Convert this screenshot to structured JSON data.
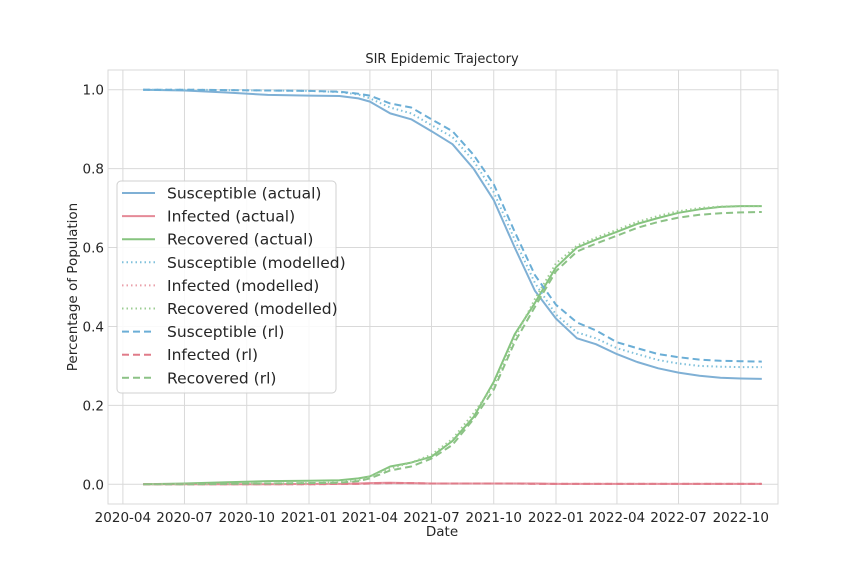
{
  "chart_data": {
    "type": "line",
    "title": "SIR Epidemic Trajectory",
    "xlabel": "Date",
    "ylabel": "Percentage of Population",
    "xlim": [
      "2020-03-10",
      "2022-11-25"
    ],
    "ylim": [
      -0.05,
      1.05
    ],
    "grid": true,
    "legend_placement": "center-left",
    "x_ticks": [
      "2020-04-01",
      "2020-07-01",
      "2020-10-01",
      "2021-01-01",
      "2021-04-01",
      "2021-07-01",
      "2021-10-01",
      "2022-01-01",
      "2022-04-01",
      "2022-07-01",
      "2022-10-01"
    ],
    "x_tick_labels": [
      "2020-04",
      "2020-07",
      "2020-10",
      "2021-01",
      "2021-04",
      "2021-07",
      "2021-10",
      "2022-01",
      "2022-04",
      "2022-07",
      "2022-10"
    ],
    "y_ticks": [
      0.0,
      0.2,
      0.4,
      0.6,
      0.8,
      1.0
    ],
    "y_tick_labels": [
      "0.0",
      "0.2",
      "0.4",
      "0.6",
      "0.8",
      "1.0"
    ],
    "x": [
      "2020-05-01",
      "2020-07-01",
      "2020-09-01",
      "2020-11-01",
      "2021-01-01",
      "2021-02-15",
      "2021-03-15",
      "2021-04-01",
      "2021-05-01",
      "2021-06-01",
      "2021-07-01",
      "2021-08-01",
      "2021-09-01",
      "2021-10-01",
      "2021-11-01",
      "2021-12-01",
      "2022-01-01",
      "2022-02-01",
      "2022-03-01",
      "2022-04-01",
      "2022-05-01",
      "2022-06-01",
      "2022-07-01",
      "2022-08-01",
      "2022-09-01",
      "2022-10-01",
      "2022-11-01"
    ],
    "series": [
      {
        "name": "Susceptible (actual)",
        "color": "#7fb0d5",
        "style": "solid",
        "values": [
          1.0,
          0.998,
          0.993,
          0.987,
          0.985,
          0.984,
          0.978,
          0.97,
          0.94,
          0.925,
          0.895,
          0.862,
          0.8,
          0.72,
          0.6,
          0.49,
          0.42,
          0.37,
          0.355,
          0.33,
          0.31,
          0.294,
          0.283,
          0.275,
          0.27,
          0.268,
          0.267
        ]
      },
      {
        "name": "Infected (actual)",
        "color": "#e58a97",
        "style": "solid",
        "values": [
          0.0,
          0.0,
          0.0,
          0.0,
          0.001,
          0.001,
          0.002,
          0.003,
          0.004,
          0.003,
          0.002,
          0.002,
          0.002,
          0.002,
          0.002,
          0.002,
          0.001,
          0.001,
          0.001,
          0.001,
          0.001,
          0.001,
          0.001,
          0.001,
          0.001,
          0.001,
          0.001
        ]
      },
      {
        "name": "Recovered (actual)",
        "color": "#86c47f",
        "style": "solid",
        "values": [
          0.0,
          0.002,
          0.005,
          0.008,
          0.009,
          0.01,
          0.015,
          0.02,
          0.045,
          0.055,
          0.07,
          0.11,
          0.17,
          0.26,
          0.38,
          0.46,
          0.55,
          0.6,
          0.62,
          0.64,
          0.66,
          0.675,
          0.688,
          0.697,
          0.703,
          0.705,
          0.705
        ]
      },
      {
        "name": "Susceptible (modelled)",
        "color": "#7fc0db",
        "style": "dotted",
        "values": [
          1.0,
          1.0,
          0.999,
          0.998,
          0.997,
          0.994,
          0.988,
          0.978,
          0.955,
          0.94,
          0.91,
          0.88,
          0.82,
          0.74,
          0.62,
          0.51,
          0.43,
          0.385,
          0.37,
          0.345,
          0.33,
          0.315,
          0.306,
          0.3,
          0.298,
          0.297,
          0.297
        ]
      },
      {
        "name": "Infected (modelled)",
        "color": "#eaa0aa",
        "style": "dotted",
        "values": [
          0.0,
          0.0,
          0.0,
          0.0,
          0.0,
          0.001,
          0.001,
          0.002,
          0.003,
          0.003,
          0.002,
          0.002,
          0.002,
          0.002,
          0.002,
          0.001,
          0.001,
          0.001,
          0.001,
          0.001,
          0.001,
          0.001,
          0.001,
          0.001,
          0.001,
          0.001,
          0.001
        ]
      },
      {
        "name": "Recovered (modelled)",
        "color": "#9ccd93",
        "style": "dotted",
        "values": [
          0.0,
          0.0,
          0.001,
          0.002,
          0.003,
          0.005,
          0.01,
          0.02,
          0.04,
          0.055,
          0.075,
          0.115,
          0.18,
          0.25,
          0.37,
          0.47,
          0.56,
          0.605,
          0.625,
          0.645,
          0.665,
          0.68,
          0.692,
          0.7,
          0.704,
          0.705,
          0.705
        ]
      },
      {
        "name": "Susceptible (rl)",
        "color": "#6baed6",
        "style": "dashed",
        "values": [
          1.0,
          1.0,
          0.999,
          0.998,
          0.997,
          0.995,
          0.99,
          0.985,
          0.965,
          0.955,
          0.925,
          0.895,
          0.835,
          0.76,
          0.64,
          0.53,
          0.455,
          0.41,
          0.39,
          0.36,
          0.345,
          0.33,
          0.322,
          0.316,
          0.313,
          0.312,
          0.311
        ]
      },
      {
        "name": "Infected (rl)",
        "color": "#e07b89",
        "style": "dashed",
        "values": [
          0.0,
          0.0,
          0.0,
          0.0,
          0.0,
          0.001,
          0.001,
          0.002,
          0.003,
          0.003,
          0.002,
          0.002,
          0.002,
          0.002,
          0.002,
          0.001,
          0.001,
          0.001,
          0.001,
          0.001,
          0.001,
          0.001,
          0.001,
          0.001,
          0.001,
          0.001,
          0.001
        ]
      },
      {
        "name": "Recovered (rl)",
        "color": "#8cc286",
        "style": "dashed",
        "values": [
          0.0,
          0.0,
          0.001,
          0.002,
          0.003,
          0.004,
          0.008,
          0.015,
          0.035,
          0.045,
          0.065,
          0.1,
          0.165,
          0.24,
          0.36,
          0.45,
          0.54,
          0.59,
          0.61,
          0.63,
          0.65,
          0.665,
          0.676,
          0.683,
          0.687,
          0.689,
          0.69
        ]
      }
    ]
  }
}
